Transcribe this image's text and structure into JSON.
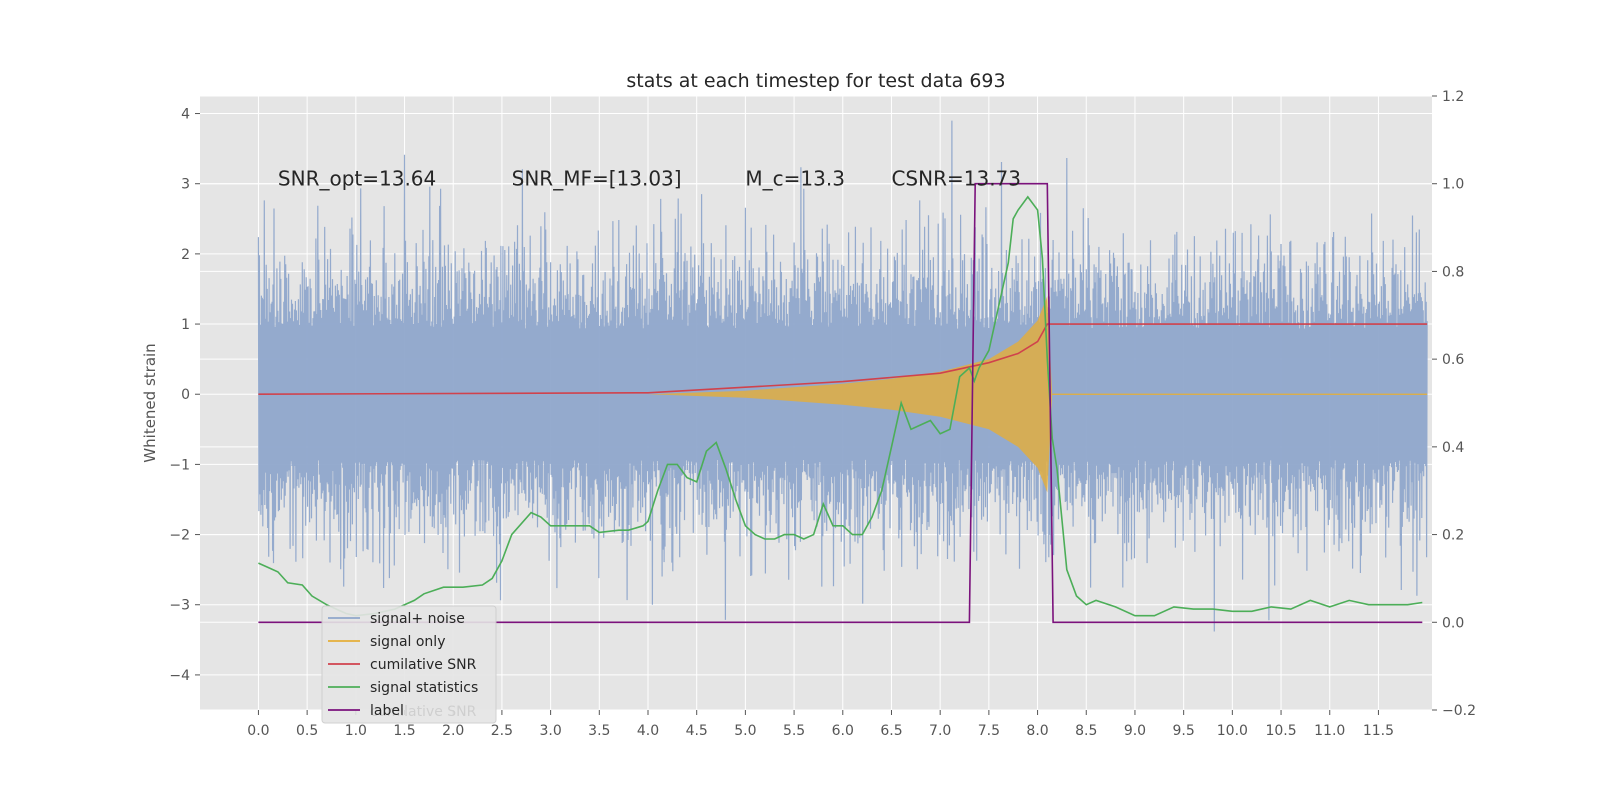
{
  "chart_data": {
    "type": "line",
    "title": "stats at each timestep for test data 693",
    "ylabel": "Whitened strain",
    "xlabel": "",
    "xlim": [
      -0.6,
      12.05
    ],
    "ylim": [
      -4.5,
      4.25
    ],
    "y2lim": [
      -0.2,
      1.2
    ],
    "x_ticks": [
      "0.0",
      "0.5",
      "1.0",
      "1.5",
      "2.0",
      "2.5",
      "3.0",
      "3.5",
      "4.0",
      "4.5",
      "5.0",
      "5.5",
      "6.0",
      "6.5",
      "7.0",
      "7.5",
      "8.0",
      "8.5",
      "9.0",
      "9.5",
      "10.0",
      "10.5",
      "11.0",
      "11.5"
    ],
    "y_ticks": [
      "4",
      "3",
      "2",
      "1",
      "0",
      "−1",
      "−2",
      "−3",
      "−4"
    ],
    "y2_ticks": [
      "1.2",
      "1.0",
      "0.8",
      "0.6",
      "0.4",
      "0.2",
      "0.0",
      "−0.2"
    ],
    "grid": true,
    "legend_position": "lower-left",
    "annotations": [
      {
        "text": "SNR_opt=13.64",
        "x": 0.2,
        "y": 3.1
      },
      {
        "text": "SNR_MF=[13.03]",
        "x": 2.6,
        "y": 3.1
      },
      {
        "text": "M_c=13.3",
        "x": 5.0,
        "y": 3.1
      },
      {
        "text": "CSNR=13.73",
        "x": 6.5,
        "y": 3.1
      }
    ],
    "series": [
      {
        "name": "signal+ noise",
        "color": "#8fa6cb",
        "axis": "left",
        "x_range": [
          0.0,
          12.0
        ],
        "typical_band": [
          -1.7,
          1.7
        ],
        "peak_range": [
          -4.1,
          3.9
        ]
      },
      {
        "name": "signal only",
        "color": "#e5ae38",
        "axis": "left",
        "x": [
          4.0,
          5.0,
          6.0,
          6.5,
          7.0,
          7.5,
          7.8,
          8.0,
          8.1,
          8.15,
          12.0
        ],
        "envelope": [
          0.0,
          0.05,
          0.15,
          0.22,
          0.32,
          0.5,
          0.75,
          1.05,
          1.4,
          0.0,
          0.0
        ]
      },
      {
        "name": "cumilative SNR",
        "color": "#d0424c",
        "axis": "left",
        "x": [
          0.0,
          4.0,
          5.0,
          6.0,
          7.0,
          7.5,
          7.8,
          8.0,
          8.1,
          8.15,
          12.0
        ],
        "y": [
          0.0,
          0.02,
          0.1,
          0.18,
          0.3,
          0.45,
          0.58,
          0.75,
          1.0,
          1.0,
          1.0
        ]
      },
      {
        "name": "signal statistics",
        "color": "#4cae58",
        "axis": "right",
        "x": [
          0.0,
          0.1,
          0.2,
          0.3,
          0.45,
          0.55,
          0.7,
          0.8,
          0.9,
          1.0,
          1.2,
          1.4,
          1.6,
          1.7,
          1.9,
          2.1,
          2.3,
          2.4,
          2.5,
          2.6,
          2.8,
          2.9,
          3.0,
          3.2,
          3.4,
          3.5,
          3.7,
          3.8,
          3.95,
          4.0,
          4.1,
          4.2,
          4.3,
          4.4,
          4.5,
          4.6,
          4.7,
          4.8,
          4.9,
          5.0,
          5.1,
          5.2,
          5.3,
          5.4,
          5.5,
          5.6,
          5.7,
          5.8,
          5.9,
          6.0,
          6.1,
          6.2,
          6.3,
          6.4,
          6.5,
          6.6,
          6.7,
          6.8,
          6.9,
          7.0,
          7.1,
          7.2,
          7.3,
          7.35,
          7.4,
          7.5,
          7.6,
          7.7,
          7.75,
          7.8,
          7.9,
          8.0,
          8.05,
          8.1,
          8.15,
          8.2,
          8.3,
          8.4,
          8.5,
          8.6,
          8.8,
          9.0,
          9.2,
          9.4,
          9.6,
          9.8,
          10.0,
          10.2,
          10.4,
          10.6,
          10.8,
          11.0,
          11.2,
          11.4,
          11.6,
          11.8,
          11.95
        ],
        "y": [
          0.135,
          0.125,
          0.115,
          0.09,
          0.085,
          0.06,
          0.04,
          0.03,
          0.02,
          0.015,
          0.02,
          0.03,
          0.05,
          0.065,
          0.08,
          0.08,
          0.085,
          0.1,
          0.14,
          0.2,
          0.25,
          0.24,
          0.22,
          0.22,
          0.22,
          0.205,
          0.21,
          0.21,
          0.22,
          0.23,
          0.3,
          0.36,
          0.36,
          0.33,
          0.32,
          0.39,
          0.41,
          0.35,
          0.28,
          0.22,
          0.2,
          0.19,
          0.19,
          0.2,
          0.2,
          0.19,
          0.2,
          0.27,
          0.22,
          0.22,
          0.2,
          0.2,
          0.24,
          0.3,
          0.4,
          0.5,
          0.44,
          0.45,
          0.46,
          0.43,
          0.44,
          0.56,
          0.58,
          0.55,
          0.58,
          0.62,
          0.72,
          0.82,
          0.92,
          0.94,
          0.97,
          0.94,
          0.83,
          0.6,
          0.42,
          0.35,
          0.12,
          0.06,
          0.04,
          0.05,
          0.035,
          0.015,
          0.015,
          0.035,
          0.03,
          0.03,
          0.025,
          0.025,
          0.035,
          0.03,
          0.05,
          0.035,
          0.05,
          0.04,
          0.04,
          0.04,
          0.045
        ]
      },
      {
        "name": "label",
        "color": "#7b127c",
        "axis": "right",
        "x": [
          0.0,
          7.3,
          7.36,
          8.1,
          8.16,
          11.95
        ],
        "y": [
          0.0,
          0.0,
          1.0,
          1.0,
          0.0,
          0.0
        ]
      }
    ],
    "legend_ghost_text": "cumilative SNR"
  }
}
